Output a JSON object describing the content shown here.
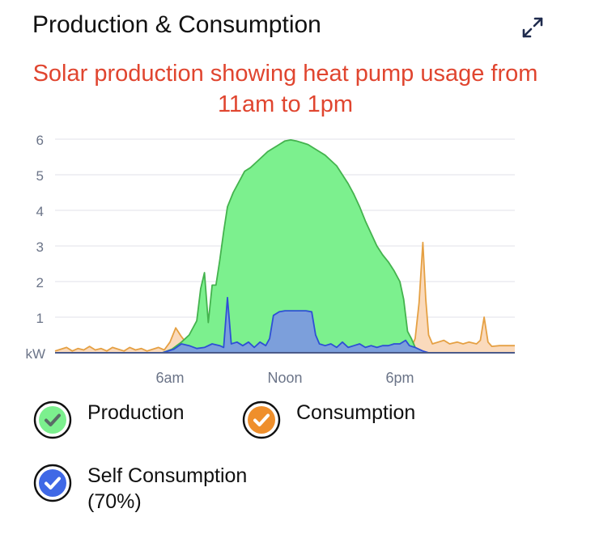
{
  "header": {
    "title": "Production & Consumption",
    "expand_icon": "expand-arrows-icon"
  },
  "annotation": {
    "line1": "Solar production showing heat pump usage from",
    "line2": "11am to 1pm"
  },
  "colors": {
    "production_fill": "#7cf08e",
    "production_line": "#44b34e",
    "consumption_fill": "#f9d3b0",
    "consumption_line": "#e5a043",
    "self_fill": "#7c9fdb",
    "self_line": "#2e4fd6",
    "annotation": "#e0452f",
    "grid": "#e6e8ee",
    "axis_text": "#6b7488"
  },
  "chart_data": {
    "type": "area",
    "unit": "kW",
    "ylim": [
      0,
      6
    ],
    "yticks": [
      1,
      2,
      3,
      4,
      5,
      6
    ],
    "xlim": [
      0,
      24
    ],
    "xticks": [
      {
        "hour": 6,
        "label": "6am"
      },
      {
        "hour": 12,
        "label": "Noon"
      },
      {
        "hour": 18,
        "label": "6pm"
      }
    ],
    "grid": true,
    "series": [
      {
        "name": "Production",
        "points": [
          [
            0,
            0
          ],
          [
            5.6,
            0
          ],
          [
            6.1,
            0.1
          ],
          [
            6.6,
            0.3
          ],
          [
            7.0,
            0.5
          ],
          [
            7.4,
            0.9
          ],
          [
            7.6,
            1.8
          ],
          [
            7.8,
            2.25
          ],
          [
            8.0,
            0.85
          ],
          [
            8.2,
            1.9
          ],
          [
            8.4,
            1.9
          ],
          [
            8.6,
            2.6
          ],
          [
            8.8,
            3.4
          ],
          [
            9.0,
            4.1
          ],
          [
            9.3,
            4.5
          ],
          [
            9.6,
            4.8
          ],
          [
            9.9,
            5.1
          ],
          [
            10.2,
            5.2
          ],
          [
            10.5,
            5.35
          ],
          [
            10.8,
            5.5
          ],
          [
            11.1,
            5.65
          ],
          [
            11.4,
            5.75
          ],
          [
            11.7,
            5.85
          ],
          [
            12.0,
            5.95
          ],
          [
            12.3,
            5.98
          ],
          [
            12.6,
            5.95
          ],
          [
            12.9,
            5.9
          ],
          [
            13.2,
            5.85
          ],
          [
            13.5,
            5.75
          ],
          [
            13.8,
            5.65
          ],
          [
            14.1,
            5.55
          ],
          [
            14.4,
            5.4
          ],
          [
            14.7,
            5.25
          ],
          [
            15.0,
            5.0
          ],
          [
            15.3,
            4.75
          ],
          [
            15.6,
            4.45
          ],
          [
            15.9,
            4.1
          ],
          [
            16.2,
            3.7
          ],
          [
            16.5,
            3.35
          ],
          [
            16.8,
            3.0
          ],
          [
            17.1,
            2.75
          ],
          [
            17.4,
            2.55
          ],
          [
            17.7,
            2.3
          ],
          [
            18.0,
            2.0
          ],
          [
            18.2,
            1.5
          ],
          [
            18.4,
            0.6
          ],
          [
            18.6,
            0.4
          ],
          [
            18.8,
            0.15
          ],
          [
            19.2,
            0
          ],
          [
            24,
            0
          ]
        ]
      },
      {
        "name": "Consumption",
        "points": [
          [
            0,
            0.05
          ],
          [
            0.3,
            0.1
          ],
          [
            0.6,
            0.15
          ],
          [
            0.9,
            0.05
          ],
          [
            1.2,
            0.12
          ],
          [
            1.5,
            0.08
          ],
          [
            1.8,
            0.18
          ],
          [
            2.1,
            0.08
          ],
          [
            2.4,
            0.12
          ],
          [
            2.7,
            0.05
          ],
          [
            3.0,
            0.15
          ],
          [
            3.3,
            0.1
          ],
          [
            3.6,
            0.05
          ],
          [
            3.9,
            0.15
          ],
          [
            4.2,
            0.08
          ],
          [
            4.5,
            0.12
          ],
          [
            4.8,
            0.05
          ],
          [
            5.1,
            0.1
          ],
          [
            5.4,
            0.15
          ],
          [
            5.7,
            0.08
          ],
          [
            6.0,
            0.3
          ],
          [
            6.3,
            0.7
          ],
          [
            6.6,
            0.45
          ],
          [
            6.9,
            0.25
          ],
          [
            7.2,
            0.1
          ],
          [
            18.6,
            0.15
          ],
          [
            18.8,
            0.4
          ],
          [
            19.0,
            1.4
          ],
          [
            19.2,
            3.1
          ],
          [
            19.35,
            1.5
          ],
          [
            19.5,
            0.5
          ],
          [
            19.7,
            0.25
          ],
          [
            20.0,
            0.3
          ],
          [
            20.3,
            0.35
          ],
          [
            20.6,
            0.25
          ],
          [
            21.0,
            0.3
          ],
          [
            21.3,
            0.25
          ],
          [
            21.6,
            0.3
          ],
          [
            22.0,
            0.25
          ],
          [
            22.2,
            0.35
          ],
          [
            22.4,
            1.0
          ],
          [
            22.6,
            0.3
          ],
          [
            22.8,
            0.18
          ],
          [
            23.2,
            0.2
          ],
          [
            24,
            0.2
          ]
        ]
      },
      {
        "name": "Self Consumption",
        "percent": "(70%)",
        "points": [
          [
            0,
            0
          ],
          [
            5.6,
            0
          ],
          [
            6.2,
            0.1
          ],
          [
            6.6,
            0.25
          ],
          [
            7.0,
            0.2
          ],
          [
            7.4,
            0.12
          ],
          [
            7.8,
            0.15
          ],
          [
            8.2,
            0.25
          ],
          [
            8.6,
            0.2
          ],
          [
            8.8,
            0.15
          ],
          [
            9.0,
            1.55
          ],
          [
            9.2,
            0.25
          ],
          [
            9.5,
            0.3
          ],
          [
            9.8,
            0.2
          ],
          [
            10.1,
            0.3
          ],
          [
            10.4,
            0.15
          ],
          [
            10.7,
            0.3
          ],
          [
            11.0,
            0.2
          ],
          [
            11.2,
            0.4
          ],
          [
            11.4,
            1.05
          ],
          [
            11.7,
            1.15
          ],
          [
            12.0,
            1.18
          ],
          [
            12.4,
            1.18
          ],
          [
            12.8,
            1.18
          ],
          [
            13.1,
            1.18
          ],
          [
            13.4,
            1.15
          ],
          [
            13.6,
            0.5
          ],
          [
            13.8,
            0.25
          ],
          [
            14.1,
            0.2
          ],
          [
            14.4,
            0.25
          ],
          [
            14.7,
            0.15
          ],
          [
            15.0,
            0.3
          ],
          [
            15.3,
            0.15
          ],
          [
            15.6,
            0.2
          ],
          [
            15.9,
            0.25
          ],
          [
            16.2,
            0.15
          ],
          [
            16.5,
            0.2
          ],
          [
            16.8,
            0.15
          ],
          [
            17.1,
            0.2
          ],
          [
            17.4,
            0.2
          ],
          [
            17.7,
            0.25
          ],
          [
            18.0,
            0.25
          ],
          [
            18.3,
            0.35
          ],
          [
            18.5,
            0.2
          ],
          [
            18.8,
            0.15
          ],
          [
            19.2,
            0.05
          ],
          [
            19.5,
            0
          ],
          [
            24,
            0
          ]
        ]
      }
    ]
  },
  "legend": {
    "production": {
      "label": "Production",
      "icon": "check-circle-icon"
    },
    "consumption": {
      "label": "Consumption",
      "icon": "check-circle-icon"
    },
    "self": {
      "label": "Self Consumption",
      "sub": "(70%)",
      "icon": "check-circle-icon"
    }
  }
}
